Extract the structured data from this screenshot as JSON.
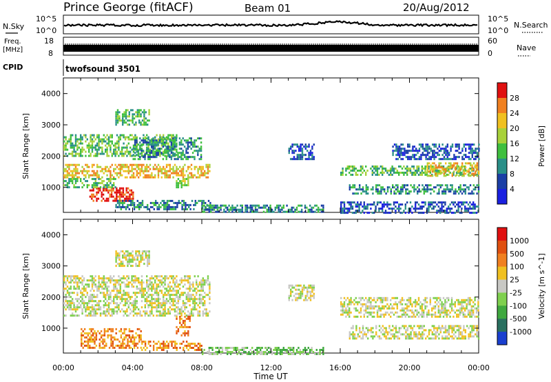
{
  "header": {
    "title": "Prince George (fitACF)",
    "beam": "Beam 01",
    "date": "20/Aug/2012"
  },
  "panels_top": {
    "nsky_label": "N.Sky",
    "nsky_left_ticks": [
      "10^5",
      "10^0"
    ],
    "nsearch_label": "N.Search",
    "nsearch_right_ticks": [
      "10^5",
      "10^0"
    ],
    "freq_label_1": "Freq.",
    "freq_label_2": "[MHz]",
    "freq_ticks": [
      "18",
      "8"
    ],
    "nave_label": "Nave",
    "nave_ticks": [
      "60",
      "0"
    ],
    "cpid_label": "CPID",
    "cpid_value": "twofsound 3501"
  },
  "chart_data": [
    {
      "type": "heatmap",
      "name": "power",
      "ylabel": "Slant Range [km]",
      "xlabel": "",
      "ylim": [
        200,
        4500
      ],
      "yticks": [
        "1000",
        "2000",
        "3000",
        "4000"
      ],
      "colorbar_label": "Power [dB]",
      "colorbar_ticks": [
        "4",
        "8",
        "12",
        "16",
        "20",
        "24",
        "28"
      ],
      "colorbar_colors": [
        "#1a20e0",
        "#1b3fa6",
        "#2a8f88",
        "#3fbf3f",
        "#a8d13a",
        "#f0c020",
        "#f08020",
        "#e01010"
      ],
      "regions": [
        {
          "t0": 0.0,
          "t1": 6.5,
          "r0": 2000,
          "r1": 2700,
          "level": 3
        },
        {
          "t0": 0.0,
          "t1": 8.5,
          "r0": 1350,
          "r1": 1750,
          "level": 5
        },
        {
          "t0": 1.5,
          "t1": 4.0,
          "r0": 550,
          "r1": 1000,
          "level": 7
        },
        {
          "t0": 0.0,
          "t1": 3.0,
          "r0": 1000,
          "r1": 1300,
          "level": 3
        },
        {
          "t0": 3.0,
          "t1": 5.0,
          "r0": 3000,
          "r1": 3500,
          "level": 3
        },
        {
          "t0": 4.0,
          "t1": 8.0,
          "r0": 1900,
          "r1": 2600,
          "level": 2
        },
        {
          "t0": 6.5,
          "t1": 7.2,
          "r0": 1000,
          "r1": 1300,
          "level": 4
        },
        {
          "t0": 3.0,
          "t1": 8.5,
          "r0": 300,
          "r1": 600,
          "level": 2
        },
        {
          "t0": 8.0,
          "t1": 15.0,
          "r0": 200,
          "r1": 450,
          "level": 2
        },
        {
          "t0": 13.0,
          "t1": 14.5,
          "r0": 1900,
          "r1": 2400,
          "level": 1
        },
        {
          "t0": 16.0,
          "t1": 24.0,
          "r0": 1400,
          "r1": 1700,
          "level": 3
        },
        {
          "t0": 16.5,
          "t1": 24.0,
          "r0": 800,
          "r1": 1100,
          "level": 2
        },
        {
          "t0": 21.0,
          "t1": 24.0,
          "r0": 1400,
          "r1": 1800,
          "level": 5
        },
        {
          "t0": 16.0,
          "t1": 24.0,
          "r0": 200,
          "r1": 550,
          "level": 1
        },
        {
          "t0": 19.0,
          "t1": 24.0,
          "r0": 1900,
          "r1": 2400,
          "level": 1
        }
      ]
    },
    {
      "type": "heatmap",
      "name": "velocity",
      "ylabel": "Slant Range [km]",
      "xlabel": "Time UT",
      "ylim": [
        200,
        4500
      ],
      "yticks": [
        "1000",
        "2000",
        "3000",
        "4000"
      ],
      "xticks": [
        "00:00",
        "04:00",
        "08:00",
        "12:00",
        "16:00",
        "20:00",
        "00:00"
      ],
      "colorbar_label": "Velocity [m s^-1]",
      "colorbar_ticks": [
        "1000",
        "500",
        "100",
        "25",
        "-25",
        "-100",
        "-500",
        "-1000"
      ],
      "colorbar_colors": [
        "#1a3fcf",
        "#2a7060",
        "#3fa83f",
        "#7fd04f",
        "#c8c8c4",
        "#f0c020",
        "#f08020",
        "#e05010",
        "#e01010"
      ],
      "regions": [
        {
          "t0": 0.0,
          "t1": 8.5,
          "r0": 1400,
          "r1": 2700,
          "level": 4
        },
        {
          "t0": 1.0,
          "t1": 4.5,
          "r0": 400,
          "r1": 1000,
          "level": 6
        },
        {
          "t0": 4.5,
          "t1": 8.0,
          "r0": 300,
          "r1": 600,
          "level": 6
        },
        {
          "t0": 6.5,
          "t1": 7.3,
          "r0": 800,
          "r1": 1400,
          "level": 6
        },
        {
          "t0": 3.0,
          "t1": 5.0,
          "r0": 3000,
          "r1": 3500,
          "level": 4
        },
        {
          "t0": 8.0,
          "t1": 15.0,
          "r0": 200,
          "r1": 400,
          "level": 3
        },
        {
          "t0": 16.0,
          "t1": 24.0,
          "r0": 1400,
          "r1": 2000,
          "level": 4
        },
        {
          "t0": 16.5,
          "t1": 24.0,
          "r0": 700,
          "r1": 1100,
          "level": 4
        },
        {
          "t0": 13.0,
          "t1": 14.5,
          "r0": 1900,
          "r1": 2400,
          "level": 4
        }
      ]
    }
  ]
}
